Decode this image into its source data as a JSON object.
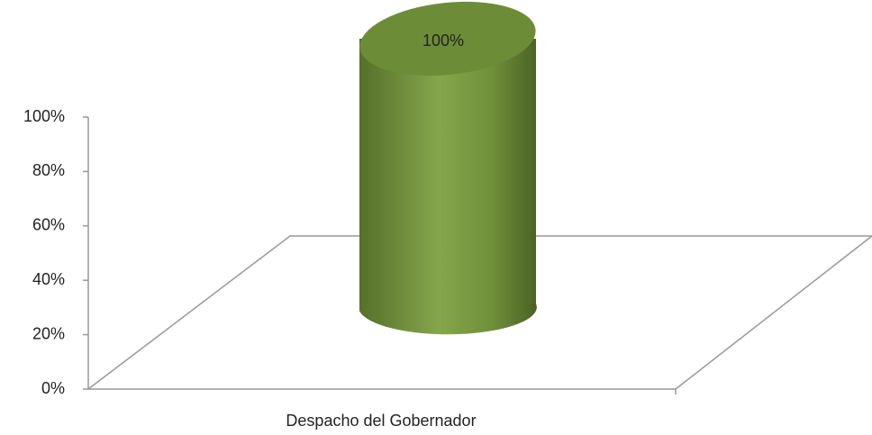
{
  "chart_data": {
    "type": "bar3d",
    "categories": [
      "Despacho del Gobernador"
    ],
    "values": [
      100
    ],
    "value_labels": [
      "100%"
    ],
    "color": "#7a9a40",
    "ylim": [
      0,
      100
    ],
    "yticks": [
      {
        "value": 0,
        "label": "0%"
      },
      {
        "value": 20,
        "label": "20%"
      },
      {
        "value": 40,
        "label": "40%"
      },
      {
        "value": 60,
        "label": "60%"
      },
      {
        "value": 80,
        "label": "80%"
      },
      {
        "value": 100,
        "label": "100%"
      }
    ]
  }
}
